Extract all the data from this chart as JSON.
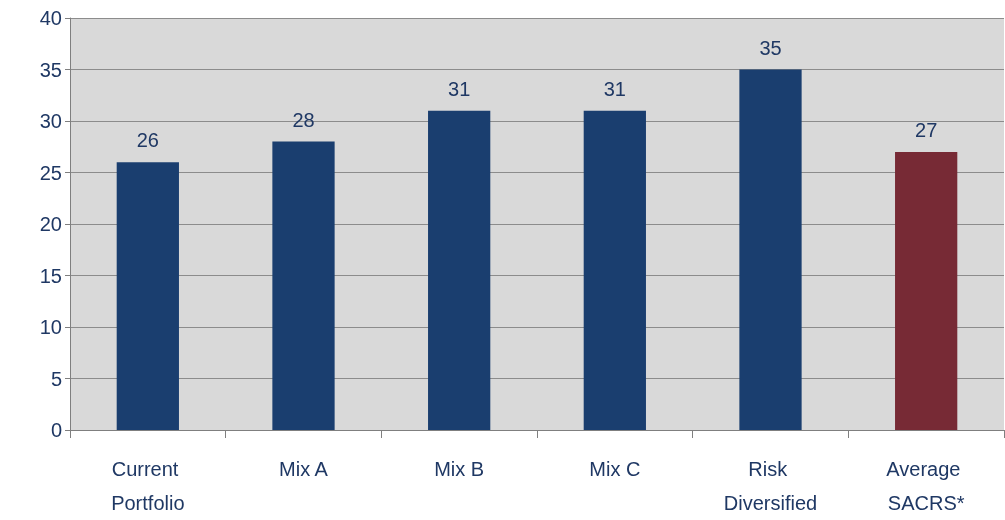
{
  "chart_data": {
    "type": "bar",
    "categories": [
      "Current Portfolio",
      "Mix A",
      "Mix B",
      "Mix C",
      "Risk Diversified",
      "Average SACRS*"
    ],
    "values": [
      26,
      28,
      31,
      31,
      35,
      27
    ],
    "colors": [
      "#1a3e6f",
      "#1a3e6f",
      "#1a3e6f",
      "#1a3e6f",
      "#1a3e6f",
      "#772a35"
    ],
    "ylim": [
      0,
      40
    ],
    "yticks": [
      0,
      5,
      10,
      15,
      20,
      25,
      30,
      35,
      40
    ],
    "grid": "y",
    "data_labels": true
  }
}
